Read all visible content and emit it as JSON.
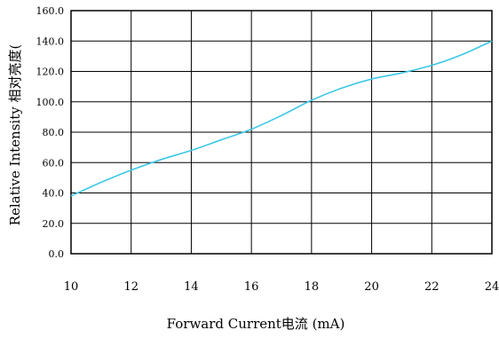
{
  "chart_data": {
    "type": "line",
    "xlabel": "Forward Current电流 (mA)",
    "ylabel": "Relative Intensity 相对亮度(",
    "xlim": [
      10,
      24
    ],
    "ylim": [
      0,
      160
    ],
    "x_ticks": [
      "10",
      "12",
      "14",
      "16",
      "18",
      "20",
      "22",
      "24"
    ],
    "y_ticks": [
      "0.0",
      "20.0",
      "40.0",
      "60.0",
      "80.0",
      "100.0",
      "120.0",
      "140.0",
      "160.0"
    ],
    "grid": true,
    "series_color": "#3cc8e6",
    "series": [
      {
        "x": [
          10,
          11,
          12,
          13,
          14,
          15,
          16,
          17,
          18,
          19,
          20,
          21,
          22,
          23,
          24
        ],
        "y": [
          38,
          47,
          55,
          62,
          68,
          75,
          82,
          91,
          101,
          109,
          115,
          119,
          124,
          131,
          140
        ]
      }
    ]
  }
}
